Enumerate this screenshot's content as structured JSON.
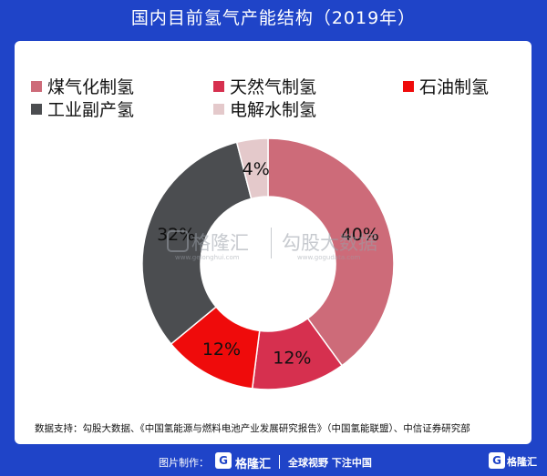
{
  "title": "国内目前氢气产能结构（2019年）",
  "chart_data": {
    "type": "pie",
    "style": "donut",
    "categories": [
      "煤气化制氢",
      "天然气制氢",
      "石油制氢",
      "工业副产氢",
      "电解水制氢"
    ],
    "values": [
      40,
      12,
      12,
      32,
      4
    ],
    "data_labels": [
      "40%",
      "12%",
      "12%",
      "32%",
      "4%"
    ],
    "colors": [
      "#cd6b79",
      "#d6304f",
      "#ef0b0b",
      "#4b4d50",
      "#e4c9cb"
    ],
    "legend": "top",
    "start_angle": "12 o'clock, clockwise"
  },
  "watermark": {
    "brand": "格隆汇",
    "brand_url": "www.gelonghui.com",
    "partner": "勾股大数据",
    "partner_url": "www.gogudata.com"
  },
  "source": "数据支持：勾股大数据、《中国氢能源与燃料电池产业发展研究报告》（中国氢能联盟）、中信证券研究部",
  "footer": {
    "credit": "图片制作：",
    "brand": "格隆汇",
    "slogan": "全球视野 下注中国",
    "brand_right": "格隆汇"
  }
}
